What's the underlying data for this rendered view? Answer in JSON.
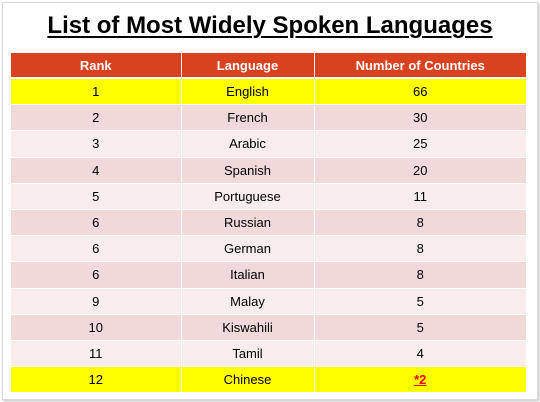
{
  "title": "List of Most Widely Spoken Languages",
  "colors": {
    "header_bg": "#d8421f",
    "header_text": "#ffffff",
    "row_odd": "#f2d9d9",
    "row_even": "#f9ecec",
    "highlight": "#ffff00",
    "note_text": "#ff0000"
  },
  "table": {
    "headers": [
      "Rank",
      "Language",
      "Number of Countries"
    ],
    "rows": [
      {
        "rank": "1",
        "language": "English",
        "countries": "66",
        "highlight": true
      },
      {
        "rank": "2",
        "language": "French",
        "countries": "30"
      },
      {
        "rank": "3",
        "language": "Arabic",
        "countries": "25"
      },
      {
        "rank": "4",
        "language": "Spanish",
        "countries": "20"
      },
      {
        "rank": "5",
        "language": "Portuguese",
        "countries": "11"
      },
      {
        "rank": "6",
        "language": "Russian",
        "countries": "8"
      },
      {
        "rank": "6",
        "language": "German",
        "countries": "8"
      },
      {
        "rank": "6",
        "language": "Italian",
        "countries": "8"
      },
      {
        "rank": "9",
        "language": "Malay",
        "countries": "5"
      },
      {
        "rank": "10",
        "language": "Kiswahili",
        "countries": "5"
      },
      {
        "rank": "11",
        "language": "Tamil",
        "countries": "4"
      },
      {
        "rank": "12",
        "language": "Chinese",
        "countries": "*2",
        "highlight": true,
        "countries_emphasis": true
      }
    ]
  }
}
